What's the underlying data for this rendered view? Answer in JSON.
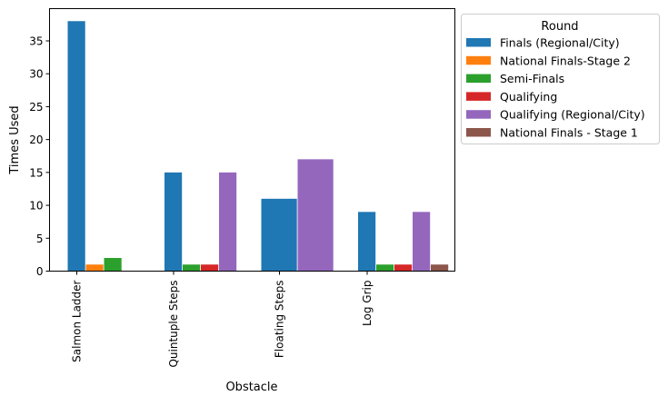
{
  "chart_data": {
    "type": "bar",
    "xlabel": "Obstacle",
    "ylabel": "Times Used",
    "ylim": [
      0,
      39.9
    ],
    "yticks": [
      0,
      5,
      10,
      15,
      20,
      25,
      30,
      35
    ],
    "grid": false,
    "categories": [
      "Salmon Ladder",
      "Quintuple Steps",
      "Floating Steps",
      "Log Grip"
    ],
    "legend": {
      "title": "Round",
      "placement": "outside-top-right"
    },
    "series": [
      {
        "name": "Finals (Regional/City)",
        "color": "#1f77b4",
        "values": [
          38,
          15,
          11,
          9
        ]
      },
      {
        "name": "National Finals-Stage 2",
        "color": "#ff7f0e",
        "values": [
          1,
          null,
          null,
          null
        ]
      },
      {
        "name": "Semi-Finals",
        "color": "#2ca02c",
        "values": [
          2,
          1,
          null,
          1
        ]
      },
      {
        "name": "Qualifying",
        "color": "#d62728",
        "values": [
          null,
          1,
          null,
          1
        ]
      },
      {
        "name": "Qualifying (Regional/City)",
        "color": "#9467bd",
        "values": [
          null,
          15,
          17,
          9
        ]
      },
      {
        "name": "National Finals - Stage 1",
        "color": "#8c564b",
        "values": [
          null,
          null,
          null,
          1
        ]
      }
    ]
  }
}
